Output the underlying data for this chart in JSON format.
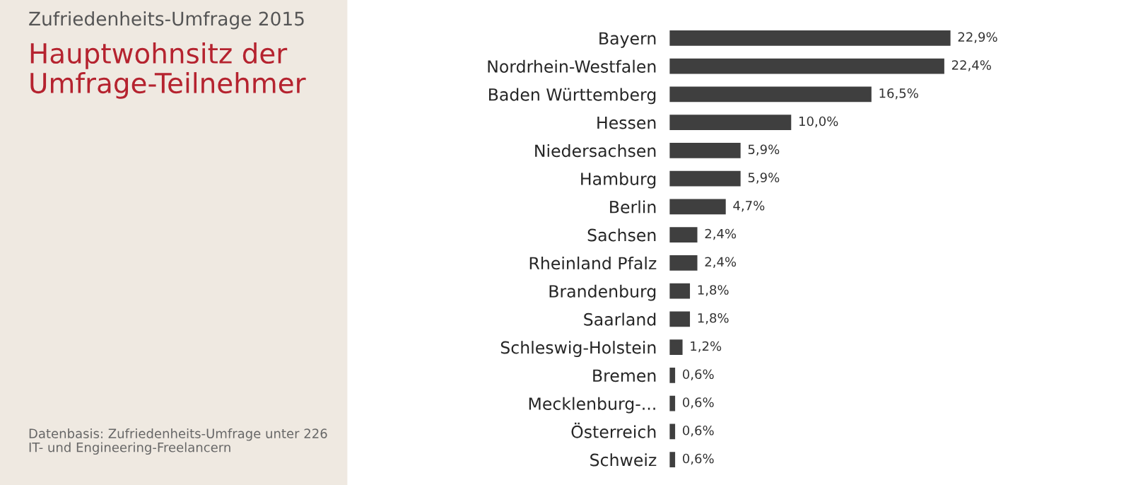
{
  "chart_data": {
    "type": "bar",
    "orientation": "horizontal",
    "title": "Hauptwohnsitz der Umfrage-Teilnehmer",
    "subtitle": "Zufriedenheits-Umfrage 2015",
    "categories": [
      "Bayern",
      "Nordrhein-Westfalen",
      "Baden Württemberg",
      "Hessen",
      "Niedersachsen",
      "Hamburg",
      "Berlin",
      "Sachsen",
      "Rheinland Pfalz",
      "Brandenburg",
      "Saarland",
      "Schleswig-Holstein",
      "Bremen",
      "Mecklenburg-...",
      "Österreich",
      "Schweiz"
    ],
    "values": [
      22.9,
      22.4,
      16.5,
      10.0,
      5.9,
      5.9,
      4.7,
      2.4,
      2.4,
      1.8,
      1.8,
      1.2,
      0.6,
      0.6,
      0.6,
      0.6
    ],
    "value_labels": [
      "22,9%",
      "22,4%",
      "16,5%",
      "10,0%",
      "5,9%",
      "5,9%",
      "4,7%",
      "2,4%",
      "2,4%",
      "1,8%",
      "1,8%",
      "1,2%",
      "0,6%",
      "0,6%",
      "0,6%",
      "0,6%"
    ],
    "color": "#3f3f3f",
    "annotations": [
      "Datenbasis: Zufriedenheits-Umfrage unter 226 IT- und Engineering-Freelancern"
    ]
  }
}
